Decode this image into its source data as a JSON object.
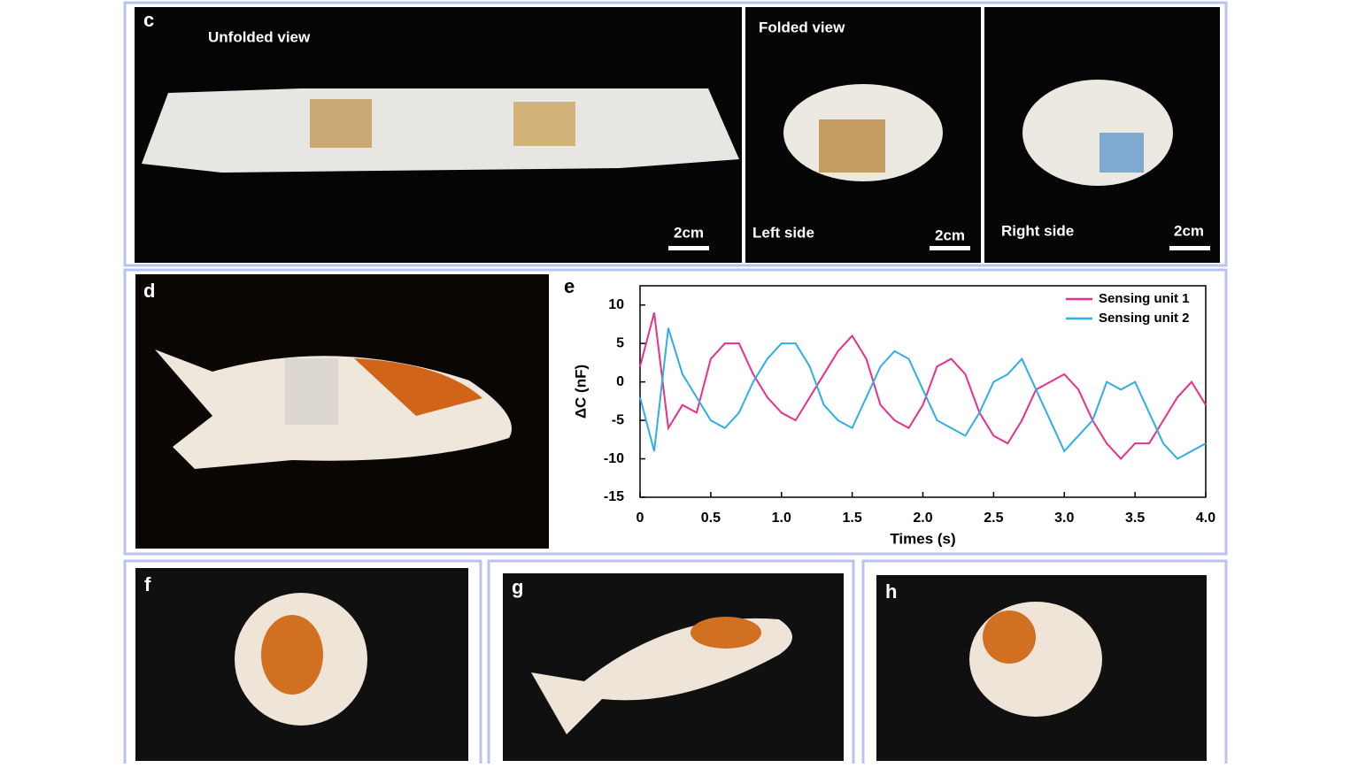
{
  "panel_c": {
    "letter": "c",
    "unfolded_title": "Unfolded view",
    "folded_title": "Folded view",
    "left_side": "Left side",
    "right_side": "Right side",
    "scale_bars": [
      "2cm",
      "2cm",
      "2cm"
    ]
  },
  "panel_d": {
    "letter": "d"
  },
  "panel_e": {
    "letter": "e"
  },
  "panel_f": {
    "letter": "f"
  },
  "panel_g": {
    "letter": "g"
  },
  "panel_h": {
    "letter": "h"
  },
  "chart_data": {
    "type": "line",
    "x_label": "Times (s)",
    "y_label": "ΔC (nF)",
    "x": [
      0,
      0.1,
      0.2,
      0.3,
      0.4,
      0.5,
      0.6,
      0.7,
      0.8,
      0.9,
      1.0,
      1.1,
      1.2,
      1.3,
      1.4,
      1.5,
      1.6,
      1.7,
      1.8,
      1.9,
      2.0,
      2.1,
      2.2,
      2.3,
      2.4,
      2.5,
      2.6,
      2.7,
      2.8,
      2.9,
      3.0,
      3.1,
      3.2,
      3.3,
      3.4,
      3.5,
      3.6,
      3.7,
      3.8,
      3.9,
      4.0
    ],
    "series": [
      {
        "name": "Sensing unit 1",
        "color": "#e8308c",
        "values": [
          2,
          9,
          -6,
          -3,
          -4,
          3,
          5,
          5,
          1,
          -2,
          -4,
          -5,
          -2,
          1,
          4,
          6,
          3,
          -3,
          -5,
          -6,
          -3,
          2,
          3,
          1,
          -4,
          -7,
          -8,
          -5,
          -1,
          0,
          1,
          -1,
          -5,
          -8,
          -10,
          -8,
          -8,
          -5,
          -2,
          0,
          -3
        ]
      },
      {
        "name": "Sensing unit 2",
        "color": "#2eaee6",
        "values": [
          -2,
          -9,
          7,
          1,
          -2,
          -5,
          -6,
          -4,
          0,
          3,
          5,
          5,
          2,
          -3,
          -5,
          -6,
          -2,
          2,
          4,
          3,
          -1,
          -5,
          -6,
          -7,
          -4,
          0,
          1,
          3,
          -1,
          -5,
          -9,
          -7,
          -5,
          0,
          -1,
          0,
          -4,
          -8,
          -10,
          -9,
          -8
        ]
      }
    ],
    "xlim": [
      0,
      4
    ],
    "ylim": [
      -15,
      12.5
    ],
    "xticks": [
      0,
      0.5,
      {
        "value": 1,
        "label": "1.0"
      },
      1.5,
      {
        "value": 2,
        "label": "2.0"
      },
      2.5,
      {
        "value": 3,
        "label": "3.0"
      },
      3.5,
      {
        "value": 4,
        "label": "4.0"
      }
    ],
    "yticks": [
      -15,
      -10,
      -5,
      0,
      5,
      10
    ],
    "legend": "upper right"
  }
}
